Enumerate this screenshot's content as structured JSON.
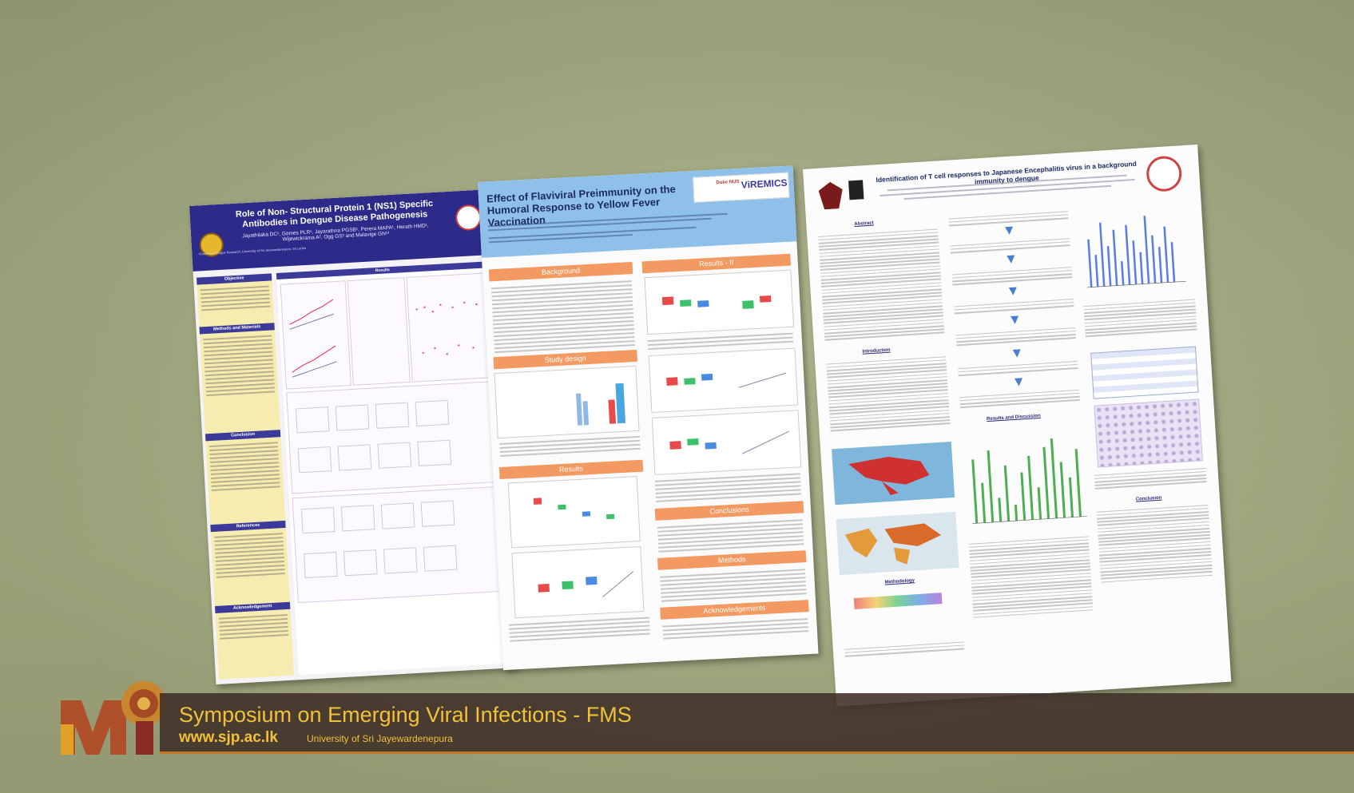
{
  "scene": {
    "wall_color": "#a2aa80"
  },
  "poster1": {
    "title": "Role of Non- Structural Protein 1 (NS1) Specific Antibodies in Dengue Disease Pathogenesis",
    "authors": "Jayathilaka DC¹, Gomes PLR¹, Jayarathna PGSB¹, Perera MAPA¹, Herath HMD¹, Wijewickrama A², Ogg GS³ and Malavige GN¹³",
    "affiliation": "¹Centre for Dengue Research, University of Sri Jayewardenepura, Sri Lanka",
    "sections": [
      "Objective",
      "Methods and Materials",
      "Conclusion",
      "References",
      "Acknowledgement"
    ],
    "results_header": "Results",
    "header_color": "#2d2b8a"
  },
  "poster2": {
    "title": "Effect of Flaviviral Preimmunity on the Humoral Response to Yellow Fever Vaccination",
    "logo_text": "ViREMICS",
    "logo_sub": "Duke NUS",
    "sections": [
      "Background",
      "Study design",
      "Results",
      "Results - II",
      "Conclusions",
      "Methods",
      "Acknowledgements"
    ],
    "header_color": "#8fc0ea",
    "band_color": "#f39a62"
  },
  "poster3": {
    "title": "Identification of T cell responses to Japanese Encephalitis virus in a background immunity to dengue",
    "headings": [
      "Abstract",
      "Introduction",
      "Results and Discussion",
      "Methodology",
      "Conclusion"
    ]
  },
  "banner": {
    "title": "Symposium on Emerging Viral Infections - FMS",
    "url": "www.sjp.ac.lk",
    "university": "University of Sri Jayewardenepura",
    "text_color": "#f2c13a",
    "background": "#3e2e26"
  }
}
